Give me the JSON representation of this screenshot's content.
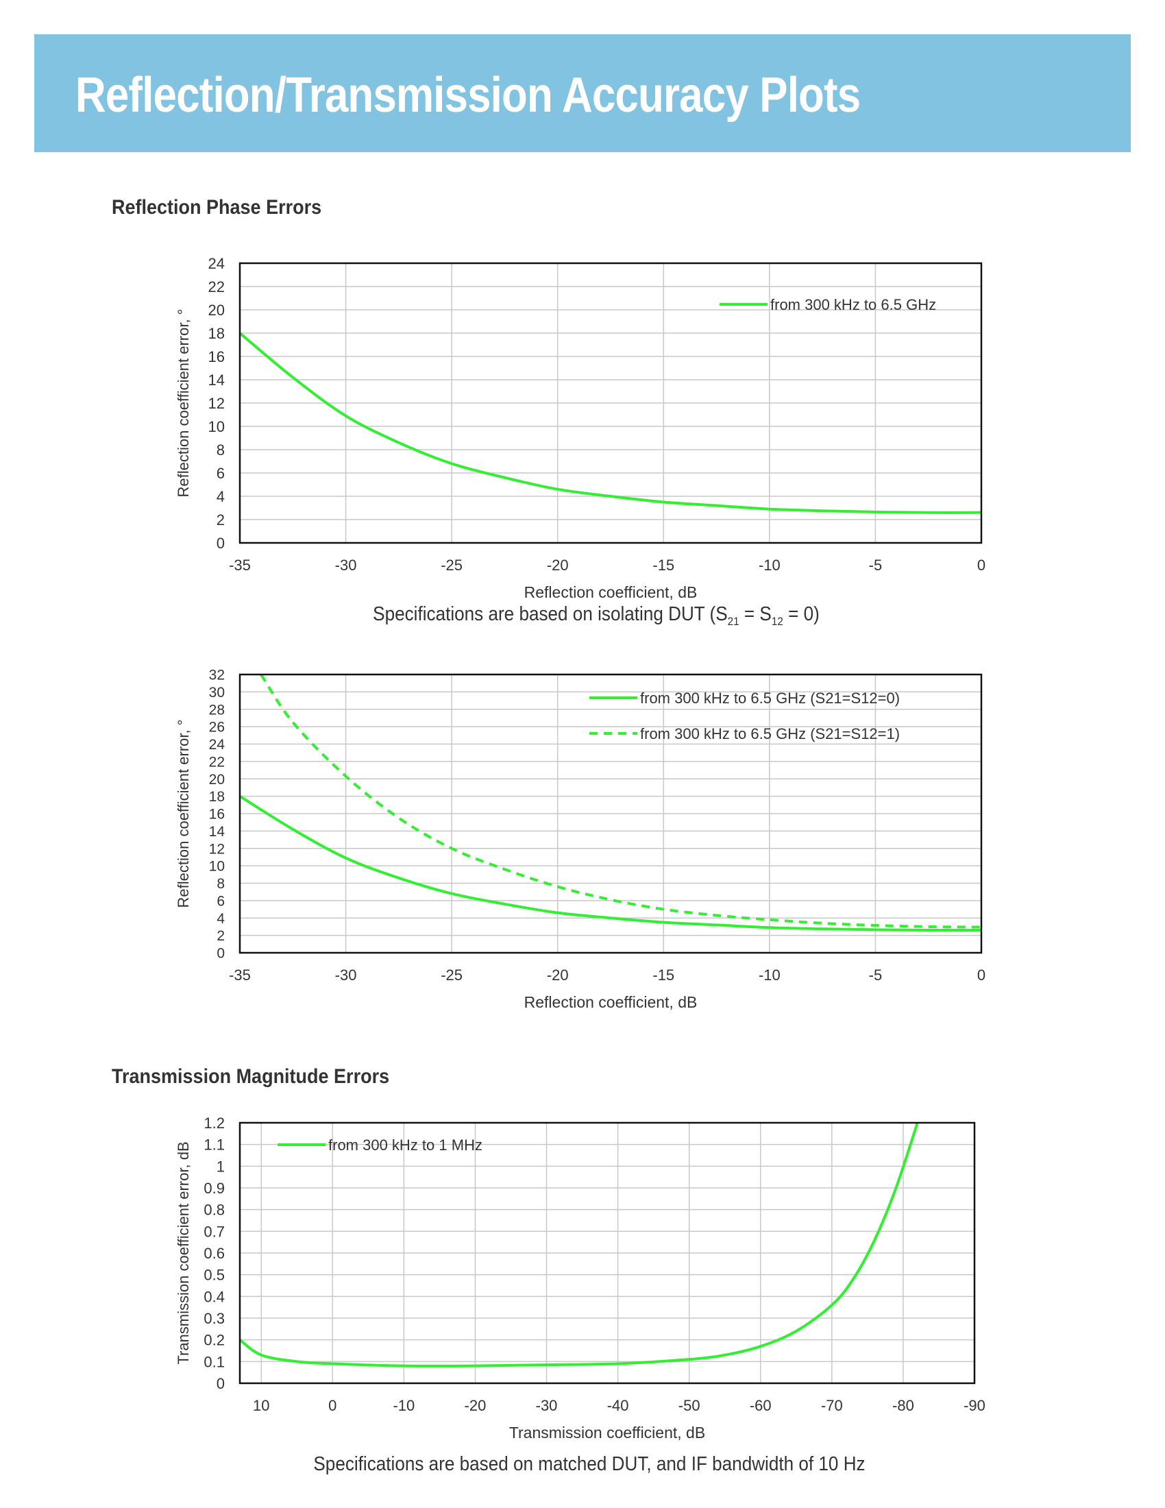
{
  "page": {
    "title": "Reflection/Transmission Accuracy Plots"
  },
  "sections": {
    "reflection_phase_title": "Reflection Phase Errors",
    "transmission_magnitude_title": "Transmission Magnitude Errors"
  },
  "captions": {
    "chart1": {
      "prefix": "Specifications are based on isolating DUT (S",
      "sub1": "21",
      "mid": " = S",
      "sub2": "12",
      "suffix": " = 0)"
    },
    "chart3": "Specifications are based on matched DUT, and IF bandwidth of 10 Hz"
  },
  "colors": {
    "banner": "#82c3e1",
    "series": "#33ee33",
    "grid": "#c8c8c8"
  },
  "chart_data": [
    {
      "type": "line",
      "xlabel": "Reflection coefficient, dB",
      "ylabel": "Reflection coefficient error, °",
      "xlim": [
        -35,
        0
      ],
      "ylim": [
        0,
        24
      ],
      "xticks": [
        -35,
        -30,
        -25,
        -20,
        -15,
        -10,
        -5,
        0
      ],
      "yticks": [
        0,
        2,
        4,
        6,
        8,
        10,
        12,
        14,
        16,
        18,
        20,
        22,
        24
      ],
      "grid": true,
      "legend_position": "top-right",
      "series": [
        {
          "name": "from 300 kHz to 6.5 GHz",
          "style": "solid",
          "x": [
            -35,
            -32.5,
            -30,
            -27.5,
            -25,
            -22.5,
            -20,
            -17.5,
            -15,
            -12.5,
            -10,
            -7.5,
            -5,
            -2.5,
            0
          ],
          "y": [
            18,
            14.2,
            10.9,
            8.6,
            6.8,
            5.6,
            4.6,
            4.0,
            3.5,
            3.2,
            2.9,
            2.75,
            2.65,
            2.6,
            2.6
          ]
        }
      ]
    },
    {
      "type": "line",
      "xlabel": "Reflection coefficient, dB",
      "ylabel": "Reflection coefficient error, °",
      "xlim": [
        -35,
        0
      ],
      "ylim": [
        0,
        32
      ],
      "xticks": [
        -35,
        -30,
        -25,
        -20,
        -15,
        -10,
        -5,
        0
      ],
      "yticks": [
        0,
        2,
        4,
        6,
        8,
        10,
        12,
        14,
        16,
        18,
        20,
        22,
        24,
        26,
        28,
        30,
        32
      ],
      "grid": true,
      "legend_position": "top-right",
      "series": [
        {
          "name": "from 300 kHz to 6.5 GHz (S21=S12=0)",
          "style": "solid",
          "x": [
            -35,
            -32.5,
            -30,
            -27.5,
            -25,
            -22.5,
            -20,
            -17.5,
            -15,
            -12.5,
            -10,
            -7.5,
            -5,
            -2.5,
            0
          ],
          "y": [
            18,
            14.2,
            10.9,
            8.6,
            6.8,
            5.6,
            4.6,
            4.0,
            3.5,
            3.2,
            2.9,
            2.75,
            2.65,
            2.6,
            2.6
          ]
        },
        {
          "name": "from 300 kHz to 6.5 GHz (S21=S12=1)",
          "style": "dashed",
          "x": [
            -34,
            -32.5,
            -30,
            -27.5,
            -25,
            -22.5,
            -20,
            -17.5,
            -15,
            -12.5,
            -10,
            -7.5,
            -5,
            -2.5,
            0
          ],
          "y": [
            32,
            26.5,
            20.3,
            15.5,
            12.0,
            9.6,
            7.6,
            6.1,
            5.0,
            4.3,
            3.8,
            3.4,
            3.15,
            3.0,
            2.95
          ]
        }
      ]
    },
    {
      "type": "line",
      "xlabel": "Transmission coefficient, dB",
      "ylabel": "Transmission coefficient error, dB",
      "xlim": [
        13,
        -90
      ],
      "ylim": [
        0,
        1.2
      ],
      "xticks": [
        10,
        0,
        -10,
        -20,
        -30,
        -40,
        -50,
        -60,
        -70,
        -80,
        -90
      ],
      "yticks": [
        0,
        0.1,
        0.2,
        0.3,
        0.4,
        0.5,
        0.6,
        0.7,
        0.8,
        0.9,
        1,
        1.1,
        1.2
      ],
      "grid": true,
      "legend_position": "top-left",
      "series": [
        {
          "name": "from 300 kHz to 1 MHz",
          "style": "solid",
          "x": [
            13,
            10,
            5,
            0,
            -10,
            -20,
            -30,
            -40,
            -50,
            -55,
            -60,
            -65,
            -70,
            -73,
            -76,
            -79,
            -82
          ],
          "y": [
            0.2,
            0.13,
            0.1,
            0.09,
            0.08,
            0.08,
            0.085,
            0.09,
            0.11,
            0.13,
            0.17,
            0.24,
            0.36,
            0.48,
            0.66,
            0.9,
            1.2
          ]
        }
      ]
    }
  ]
}
